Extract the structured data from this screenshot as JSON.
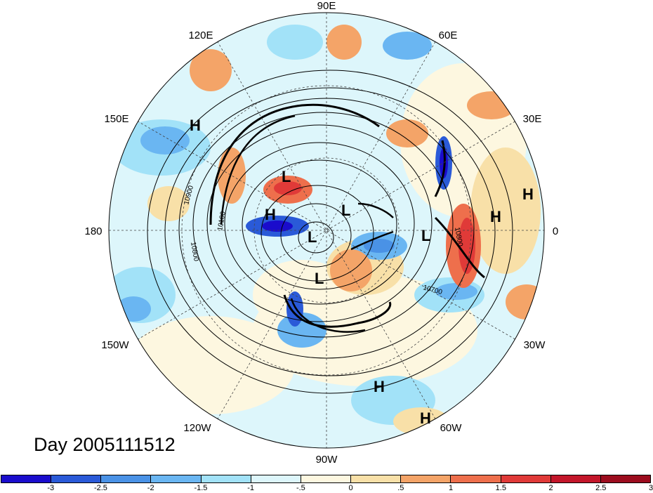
{
  "title": "Day 2005111512",
  "longitude_labels": {
    "lon_90e": "90E",
    "lon_60e": "60E",
    "lon_30e": "30E",
    "lon_0": "0",
    "lon_30w": "30W",
    "lon_60w": "60W",
    "lon_90w": "90W",
    "lon_120w": "120W",
    "lon_150w": "150W",
    "lon_180": "180",
    "lon_150e": "150E",
    "lon_120e": "120E"
  },
  "pressure_centers": [
    {
      "id": "h1",
      "label": "H"
    },
    {
      "id": "h2",
      "label": "H"
    },
    {
      "id": "h3",
      "label": "H"
    },
    {
      "id": "h4",
      "label": "H"
    },
    {
      "id": "h5",
      "label": "H"
    },
    {
      "id": "h6",
      "label": "H"
    },
    {
      "id": "l1",
      "label": "L"
    },
    {
      "id": "l2",
      "label": "L"
    },
    {
      "id": "l3",
      "label": "L"
    },
    {
      "id": "l4",
      "label": "L"
    },
    {
      "id": "l5",
      "label": "L"
    }
  ],
  "contour_labels": [
    "10900",
    "10800",
    "10700",
    "10700",
    "10800",
    "10100"
  ],
  "colorbar": {
    "colors": [
      "#1a0ccc",
      "#2a5ad8",
      "#4a92e6",
      "#6ab6f2",
      "#a2e2f8",
      "#ddf6fb",
      "#fdf7e0",
      "#f8e0a8",
      "#f4a468",
      "#ee6f4c",
      "#e03a38",
      "#c3162a",
      "#9c0c1e"
    ],
    "ticks": [
      "-3",
      "-2.5",
      "-2",
      "-1.5",
      "-1",
      "-.5",
      "0",
      ".5",
      "1",
      "1.5",
      "2",
      "2.5",
      "3"
    ]
  }
}
